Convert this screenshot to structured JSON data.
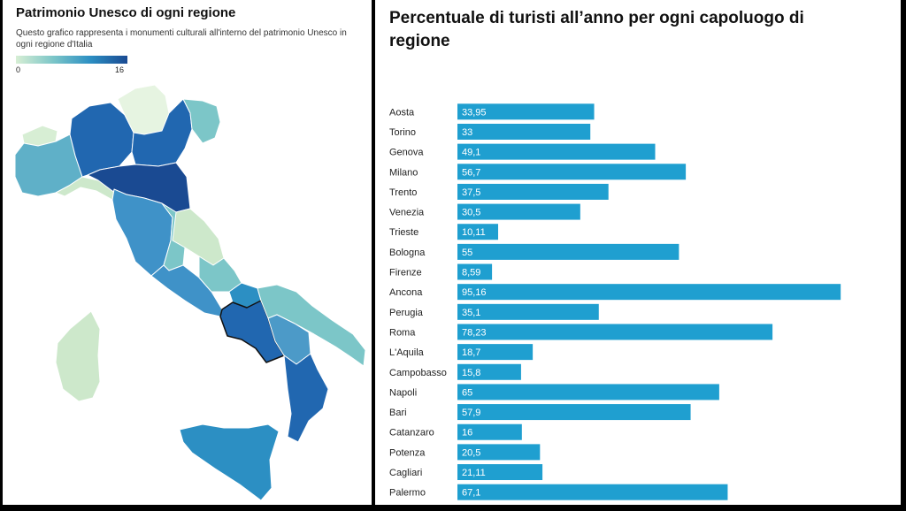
{
  "map_panel": {
    "title": "Patrimonio Unesco di ogni regione",
    "subtitle": "Questo grafico rappresenta i monumenti culturali all'interno del patrimonio Unesco in ogni regione d'Italia",
    "legend_min": "0",
    "legend_max": "16",
    "scale_colors": [
      "#d7eed4",
      "#7cc6c8",
      "#2c8fc3",
      "#1a4a92"
    ]
  },
  "chart_data": {
    "type": "bar",
    "orientation": "horizontal",
    "title": "Percentuale di turisti all’anno per ogni capoluogo di regione",
    "categories": [
      "Aosta",
      "Torino",
      "Genova",
      "Milano",
      "Trento",
      "Venezia",
      "Trieste",
      "Bologna",
      "Firenze",
      "Ancona",
      "Perugia",
      "Roma",
      "L'Aquila",
      "Campobasso",
      "Napoli",
      "Bari",
      "Catanzaro",
      "Potenza",
      "Cagliari",
      "Palermo"
    ],
    "values": [
      33.95,
      33,
      49.1,
      56.7,
      37.5,
      30.5,
      10.11,
      55,
      8.59,
      95.16,
      35.1,
      78.23,
      18.7,
      15.8,
      65,
      57.9,
      16,
      20.5,
      21.11,
      67.1
    ],
    "value_labels": [
      "33,95",
      "33",
      "49,1",
      "56,7",
      "37,5",
      "30,5",
      "10,11",
      "55",
      "8,59",
      "95,16",
      "35,1",
      "78,23",
      "18,7",
      "15,8",
      "65",
      "57,9",
      "16",
      "20,5",
      "21,11",
      "67,1"
    ],
    "xlim": [
      0,
      96
    ],
    "bar_color": "#1f9fd0",
    "grid": false
  }
}
